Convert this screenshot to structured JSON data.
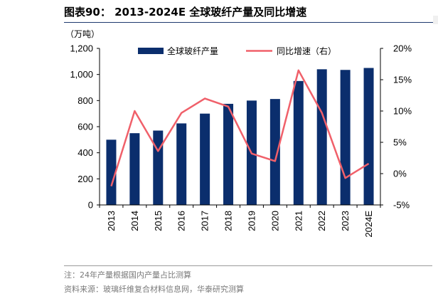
{
  "header": {
    "title": "图表90： 2013-2024E 全球玻纤产量及同比增速"
  },
  "footer": {
    "note": "注：24年产量根据国内产量占比测算",
    "source": "资料来源：玻璃纤维复合材料信息网，华泰研究测算"
  },
  "colors": {
    "bar": "#0b2e6d",
    "line": "#f0606a",
    "title_rule": "#1f3a6e"
  },
  "chart_data": {
    "type": "bar",
    "categories": [
      "2013",
      "2014",
      "2015",
      "2016",
      "2017",
      "2018",
      "2019",
      "2020",
      "2021",
      "2022",
      "2023",
      "2024E"
    ],
    "series": [
      {
        "name": "全球玻纤产量",
        "type": "bar",
        "axis": "left",
        "values": [
          500,
          550,
          570,
          625,
          700,
          775,
          800,
          812,
          950,
          1040,
          1035,
          1050
        ]
      },
      {
        "name": "同比增速（右）",
        "type": "line",
        "axis": "right",
        "values": [
          -2.0,
          10.0,
          3.6,
          9.7,
          12.0,
          10.7,
          3.2,
          2.0,
          16.5,
          9.7,
          -0.7,
          1.6
        ]
      }
    ],
    "y_left": {
      "unit": "（万吨）",
      "lim": [
        0,
        1200
      ],
      "ticks": [
        0,
        200,
        400,
        600,
        800,
        1000,
        1200
      ],
      "tick_labels": [
        "0",
        "200",
        "400",
        "600",
        "800",
        "1,000",
        "1,200"
      ]
    },
    "y_right": {
      "lim": [
        -5,
        20
      ],
      "ticks": [
        -5,
        0,
        5,
        10,
        15,
        20
      ],
      "tick_labels": [
        "-5%",
        "0%",
        "5%",
        "10%",
        "15%",
        "20%"
      ]
    },
    "legend_position": "top",
    "grid": false
  }
}
